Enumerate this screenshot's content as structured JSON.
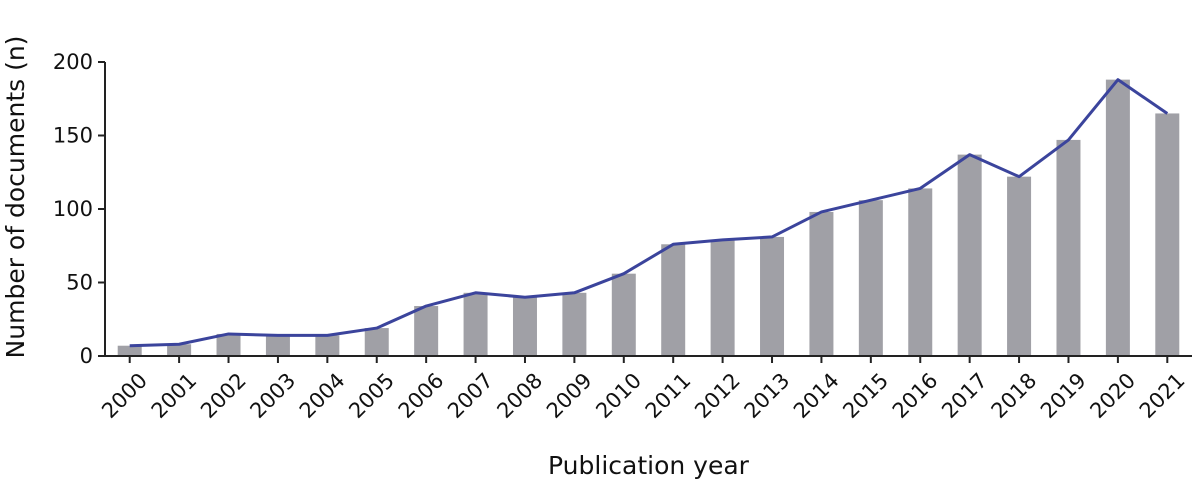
{
  "chart_data": {
    "type": "bar",
    "title": "",
    "xlabel": "Publication year",
    "ylabel": "Number of documents (n)",
    "ylim": [
      0,
      200
    ],
    "yticks": [
      0,
      50,
      100,
      150,
      200
    ],
    "categories": [
      "2000",
      "2001",
      "2002",
      "2003",
      "2004",
      "2005",
      "2006",
      "2007",
      "2008",
      "2009",
      "2010",
      "2011",
      "2012",
      "2013",
      "2014",
      "2015",
      "2016",
      "2017",
      "2018",
      "2019",
      "2020",
      "2021"
    ],
    "series": [
      {
        "kind": "bar",
        "color": "#a0a0a6",
        "values": [
          7,
          8,
          15,
          14,
          14,
          19,
          34,
          43,
          40,
          43,
          56,
          76,
          79,
          81,
          98,
          106,
          114,
          137,
          122,
          147,
          188,
          165
        ]
      },
      {
        "kind": "line",
        "color": "#3b449c",
        "values": [
          7,
          8,
          15,
          14,
          14,
          19,
          34,
          43,
          40,
          43,
          56,
          76,
          79,
          81,
          98,
          106,
          114,
          137,
          122,
          147,
          188,
          165
        ]
      }
    ],
    "grid": false,
    "legend": "none"
  }
}
